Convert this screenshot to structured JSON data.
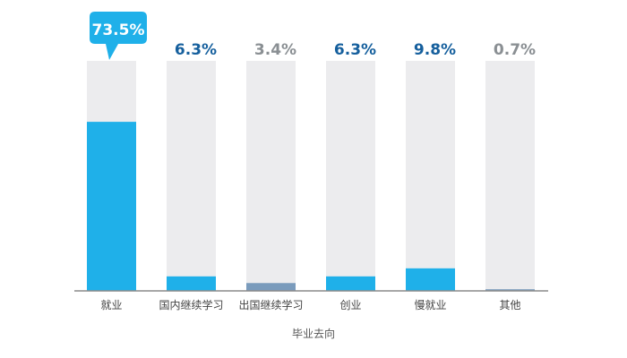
{
  "chart_data": {
    "type": "bar",
    "xlabel": "毕业去向",
    "ylim": [
      0,
      100
    ],
    "categories": [
      "就业",
      "国内继续学习",
      "出国继续学习",
      "创业",
      "慢就业",
      "其他"
    ],
    "values": [
      73.5,
      6.3,
      3.4,
      6.3,
      9.8,
      0.7
    ],
    "value_labels": [
      "73.5%",
      "6.3%",
      "3.4%",
      "6.3%",
      "9.8%",
      "0.7%"
    ],
    "bar_colors": [
      "#1fb0e9",
      "#1fb0e9",
      "#7a9bbc",
      "#1fb0e9",
      "#1fb0e9",
      "#7a9bbc"
    ],
    "label_colors": [
      "#ffffff",
      "#155f9d",
      "#8a8f93",
      "#155f9d",
      "#155f9d",
      "#8a8f93"
    ],
    "track_color": "#ececee",
    "callout_color": "#1fb0e9",
    "axis_color": "#8a8a8a"
  }
}
